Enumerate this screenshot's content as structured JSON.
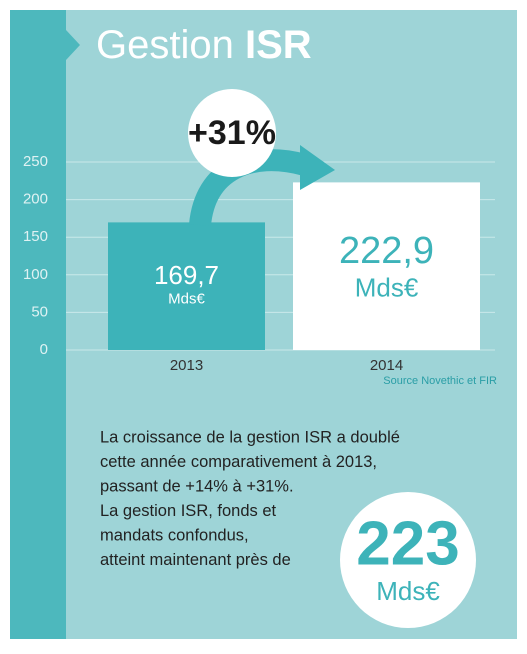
{
  "chart_data": {
    "type": "bar",
    "title": "Gestion",
    "title_bold": "ISR",
    "categories": [
      "2013",
      "2014"
    ],
    "values": [
      169.7,
      222.9
    ],
    "value_labels": [
      "169,7",
      "222,9"
    ],
    "unit": "Mds€",
    "colors": [
      "#3db3b9",
      "#ffffff"
    ],
    "ylim": [
      0,
      250
    ],
    "yticks": [
      0,
      50,
      100,
      150,
      200,
      250
    ],
    "grid": true,
    "annotation": "+31%",
    "source": "Source Novethic et FIR"
  },
  "text": {
    "lines": [
      "La croissance de la gestion ISR a doublé",
      "cette année comparativement à 2013,",
      "passant de +14% à +31%.",
      "La gestion ISR, fonds et",
      "mandats confondus,",
      "atteint maintenant près de"
    ],
    "highlight": "223",
    "highlight_unit": "Mds€"
  }
}
